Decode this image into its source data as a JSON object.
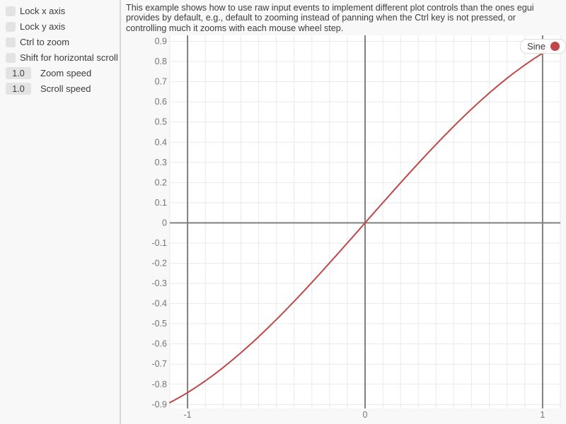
{
  "sidebar": {
    "checkboxes": [
      {
        "label": "Lock x axis",
        "checked": false
      },
      {
        "label": "Lock y axis",
        "checked": false
      },
      {
        "label": "Ctrl to zoom",
        "checked": false
      },
      {
        "label": "Shift for horizontal scroll",
        "checked": false
      }
    ],
    "drags": [
      {
        "value": "1.0",
        "label": "Zoom speed"
      },
      {
        "value": "1.0",
        "label": "Scroll speed"
      }
    ]
  },
  "main": {
    "description": "This example shows how to use raw input events to implement different plot controls than the ones egui\nprovides by default, e.g., default to zooming instead of panning when the Ctrl key is not pressed, or\ncontrolling much it zooms with each mouse wheel step."
  },
  "colors": {
    "background": "#f8f8f8",
    "plot_background": "#ffffff",
    "text": "#3c3c3c",
    "tick_text": "#757575",
    "widget_fill": "#e3e3e3",
    "minor_grid": "#e9e9e9",
    "major_grid": "#808080",
    "series_red": "#c04747"
  },
  "chart_data": {
    "type": "line",
    "title": "",
    "xlabel": "",
    "ylabel": "",
    "x_range": [
      -1.1,
      1.1
    ],
    "y_range": [
      -0.92,
      0.93
    ],
    "x_tick_values": [
      -1,
      0,
      1
    ],
    "x_tick_labels": [
      "-1",
      "0",
      "1"
    ],
    "y_tick_step": 0.1,
    "y_tick_min": -0.9,
    "y_tick_max": 0.9,
    "minor_grid_step": 0.1,
    "major_grid_x": [
      -1,
      0,
      1
    ],
    "major_grid_y": [
      0
    ],
    "grid": true,
    "legend": {
      "position": "top-right",
      "entries": [
        "Sine"
      ]
    },
    "series": [
      {
        "name": "Sine",
        "color": "#c04747",
        "x": [
          -1.1,
          -1.05,
          -1,
          -0.95,
          -0.9,
          -0.85,
          -0.8,
          -0.75,
          -0.7,
          -0.65,
          -0.6,
          -0.55,
          -0.5,
          -0.45,
          -0.4,
          -0.35,
          -0.3,
          -0.25,
          -0.2,
          -0.15,
          -0.1,
          -0.05,
          0,
          0.05,
          0.1,
          0.15,
          0.2,
          0.25,
          0.3,
          0.35,
          0.4,
          0.45,
          0.5,
          0.55,
          0.6,
          0.65,
          0.7,
          0.75,
          0.8,
          0.85,
          0.9,
          0.95,
          1,
          1.05,
          1.1
        ],
        "y": [
          -0.8912,
          -0.8674,
          -0.8415,
          -0.8134,
          -0.7833,
          -0.7513,
          -0.7174,
          -0.6816,
          -0.6442,
          -0.6052,
          -0.5646,
          -0.5227,
          -0.4794,
          -0.435,
          -0.3894,
          -0.3429,
          -0.2955,
          -0.2474,
          -0.1987,
          -0.1494,
          -0.0998,
          -0.05,
          0,
          0.05,
          0.0998,
          0.1494,
          0.1987,
          0.2474,
          0.2955,
          0.3429,
          0.3894,
          0.435,
          0.4794,
          0.5227,
          0.5646,
          0.6052,
          0.6442,
          0.6816,
          0.7174,
          0.7513,
          0.7833,
          0.8134,
          0.8415,
          0.8674,
          0.8912
        ]
      }
    ]
  }
}
